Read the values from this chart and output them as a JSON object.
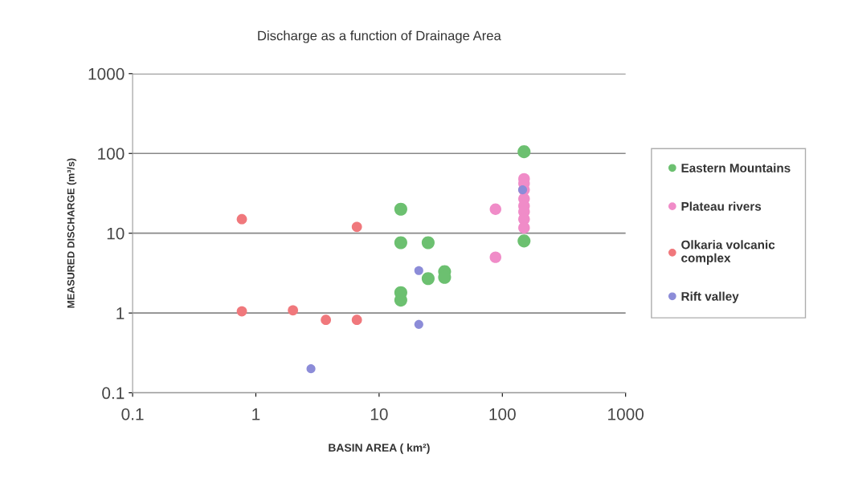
{
  "chart_data": {
    "type": "scatter",
    "title": "Discharge as a function of Drainage Area",
    "xlabel": "BASIN AREA ( km²)",
    "ylabel": "MEASURED DISCHARGE (m³/s)",
    "log": "xy",
    "xlim": [
      0.1,
      1000
    ],
    "ylim": [
      0.1,
      1000
    ],
    "xticks": [
      0.1,
      1,
      10,
      100,
      1000
    ],
    "yticks": [
      0.1,
      1,
      10,
      100,
      1000
    ],
    "grid": "y",
    "legend": "right",
    "marker": "circle",
    "series": [
      {
        "name": "Eastern Mountains",
        "color": "#6cc070",
        "x": [
          15,
          15,
          15,
          15,
          25,
          25,
          34,
          34,
          150,
          150
        ],
        "values": [
          20,
          7.6,
          1.8,
          1.45,
          7.6,
          2.7,
          3.3,
          2.8,
          105,
          8
        ]
      },
      {
        "name": "Plateau rivers",
        "color": "#f08cc8",
        "x": [
          88,
          88,
          150,
          150,
          150,
          150,
          150,
          150,
          150,
          150
        ],
        "values": [
          20,
          5,
          48,
          42,
          35,
          27,
          22,
          18.6,
          15,
          11.7
        ]
      },
      {
        "name": "Olkaria volcanic\ncomplex",
        "color": "#f0787c",
        "x": [
          0.77,
          0.77,
          2,
          3.7,
          6.6,
          6.6
        ],
        "values": [
          15,
          1.05,
          1.08,
          0.82,
          0.82,
          12
        ]
      },
      {
        "name": "Rift valley",
        "color": "#8c8cd8",
        "x": [
          2.8,
          21,
          21,
          146
        ],
        "values": [
          0.2,
          3.4,
          0.72,
          35
        ]
      }
    ]
  }
}
